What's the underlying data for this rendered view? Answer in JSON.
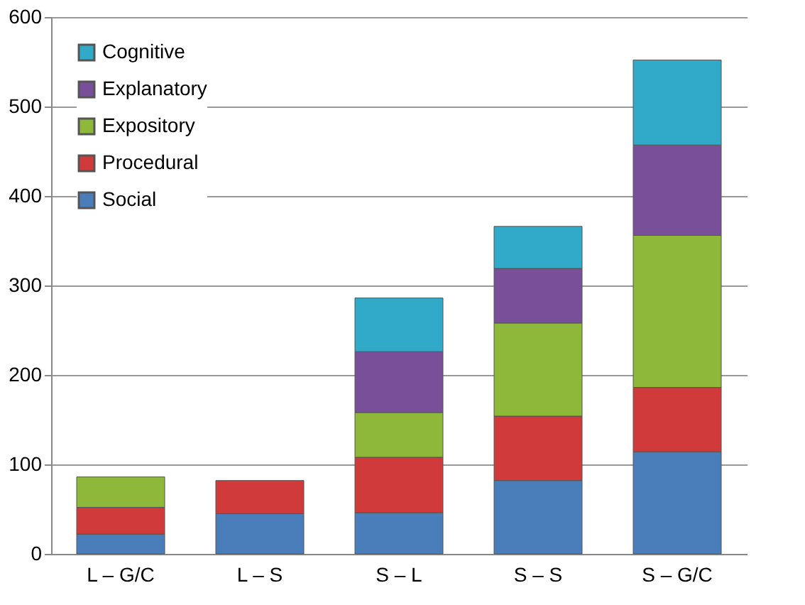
{
  "chart_data": {
    "type": "bar",
    "stacked": true,
    "categories": [
      "L – G/C",
      "L – S",
      "S – L",
      "S – S",
      "S – G/C"
    ],
    "series": [
      {
        "name": "Social",
        "color": "#4a7ebb",
        "values": [
          22,
          45,
          46,
          82,
          114
        ]
      },
      {
        "name": "Procedural",
        "color": "#d03a3a",
        "values": [
          30,
          37,
          62,
          72,
          72
        ]
      },
      {
        "name": "Expository",
        "color": "#8db83a",
        "values": [
          34,
          null,
          50,
          104,
          170
        ]
      },
      {
        "name": "Explanatory",
        "color": "#7a4f9a",
        "values": [
          null,
          null,
          68,
          61,
          101
        ]
      },
      {
        "name": "Cognitive",
        "color": "#31a9c9",
        "values": [
          null,
          null,
          60,
          47,
          95
        ]
      }
    ],
    "ylim": [
      0,
      600
    ],
    "yticks": [
      0,
      100,
      200,
      300,
      400,
      500,
      600
    ],
    "grid": "y",
    "legend": "top left"
  }
}
